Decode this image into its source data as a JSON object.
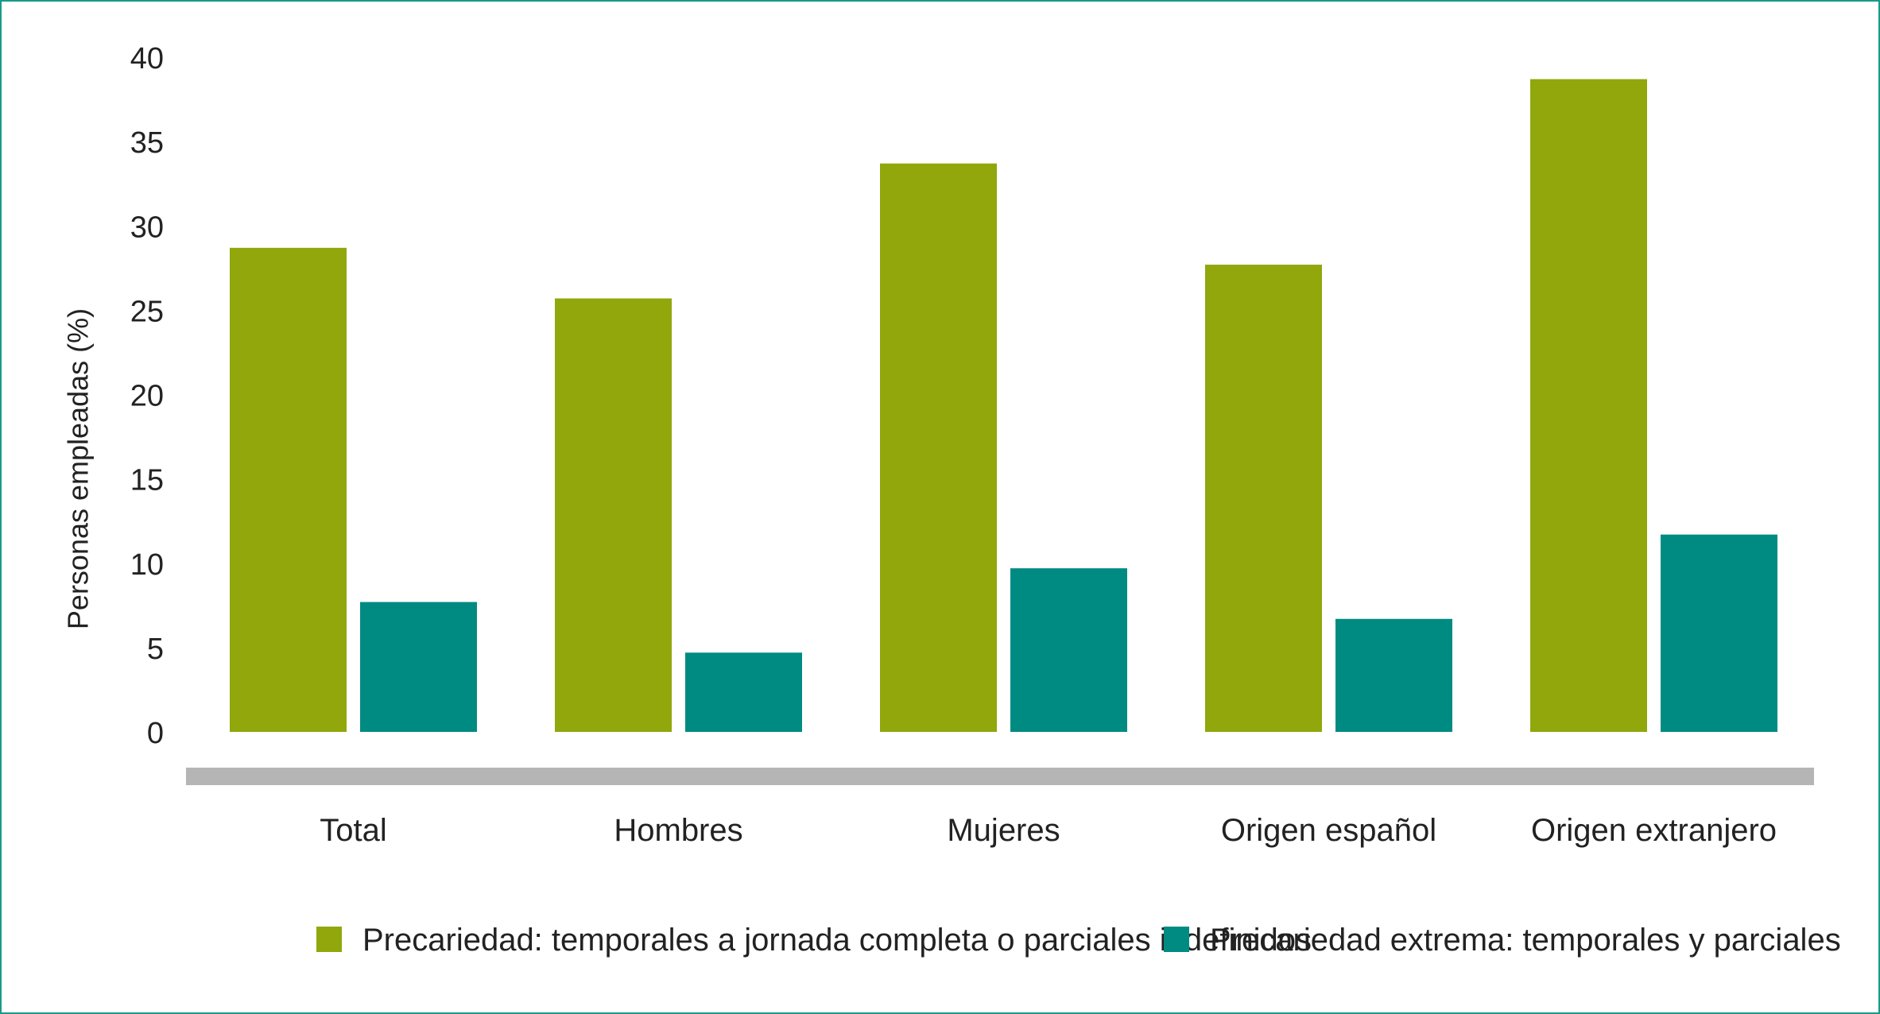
{
  "chart_data": {
    "type": "bar",
    "title": "",
    "xlabel": "",
    "ylabel": "Personas empleadas (%)",
    "ylim": [
      0,
      40
    ],
    "yticks": [
      0,
      5,
      10,
      15,
      20,
      25,
      30,
      35,
      40
    ],
    "ytick_labels": [
      "0",
      "5",
      "10",
      "15",
      "20",
      "25",
      "30",
      "35",
      "40"
    ],
    "categories": [
      "Total",
      "Hombres",
      "Mujeres",
      "Origen español",
      "Origen extranjero"
    ],
    "series": [
      {
        "name": "Precariedad: temporales a jornada completa o parciales indefinidos",
        "color": "#91a70c",
        "values": [
          28.7,
          25.7,
          33.7,
          27.7,
          38.7
        ]
      },
      {
        "name": "Precariedad extrema: temporales y parciales",
        "color": "#008b82",
        "values": [
          7.7,
          4.7,
          9.7,
          6.7,
          11.7
        ]
      }
    ],
    "grid": false,
    "legend_position": "bottom",
    "baseline_color": "#b5b5b5"
  }
}
